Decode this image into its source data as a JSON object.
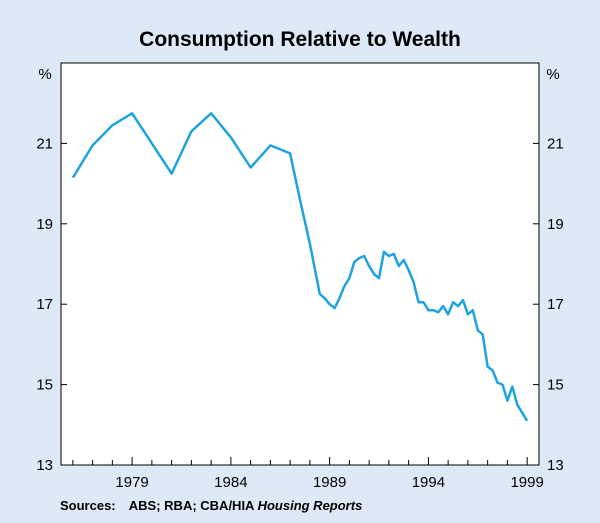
{
  "chart_data": {
    "type": "line",
    "title": "Consumption Relative to Wealth",
    "left_unit": "%",
    "right_unit": "%",
    "xlim": [
      1975.4,
      1999.6
    ],
    "ylim": [
      13,
      23
    ],
    "y_ticks": [
      13,
      15,
      17,
      19,
      21
    ],
    "x_ticks": [
      1979,
      1984,
      1989,
      1994,
      1999
    ],
    "grid": false,
    "series": [
      {
        "name": "Consumption relative to wealth",
        "color": "#1fa3e0",
        "x": [
          1976.0,
          1977.0,
          1978.0,
          1979.0,
          1980.0,
          1981.0,
          1982.0,
          1983.0,
          1984.0,
          1985.0,
          1986.0,
          1987.0,
          1987.5,
          1988.0,
          1988.5,
          1988.75,
          1989.0,
          1989.25,
          1989.5,
          1989.75,
          1990.0,
          1990.25,
          1990.5,
          1990.75,
          1991.0,
          1991.25,
          1991.5,
          1991.75,
          1992.0,
          1992.25,
          1992.5,
          1992.75,
          1993.0,
          1993.25,
          1993.5,
          1993.75,
          1994.0,
          1994.25,
          1994.5,
          1994.75,
          1995.0,
          1995.25,
          1995.5,
          1995.75,
          1996.0,
          1996.25,
          1996.5,
          1996.75,
          1997.0,
          1997.25,
          1997.5,
          1997.75,
          1998.0,
          1998.25,
          1998.5,
          1998.75,
          1999.0
        ],
        "values": [
          20.15,
          20.95,
          21.45,
          21.75,
          21.0,
          20.25,
          21.3,
          21.75,
          21.15,
          20.4,
          20.95,
          20.75,
          19.6,
          18.5,
          17.25,
          17.15,
          17.0,
          16.9,
          17.15,
          17.45,
          17.65,
          18.05,
          18.15,
          18.2,
          17.95,
          17.75,
          17.65,
          18.3,
          18.2,
          18.25,
          17.95,
          18.1,
          17.85,
          17.55,
          17.05,
          17.05,
          16.85,
          16.85,
          16.8,
          16.95,
          16.75,
          17.05,
          16.95,
          17.1,
          16.75,
          16.85,
          16.35,
          16.25,
          15.45,
          15.35,
          15.05,
          15.0,
          14.6,
          14.95,
          14.5,
          14.3,
          14.1
        ]
      }
    ]
  },
  "footer": {
    "label": "Sources:",
    "text": "ABS; RBA; CBA/HIA ",
    "italic": "Housing Reports"
  }
}
